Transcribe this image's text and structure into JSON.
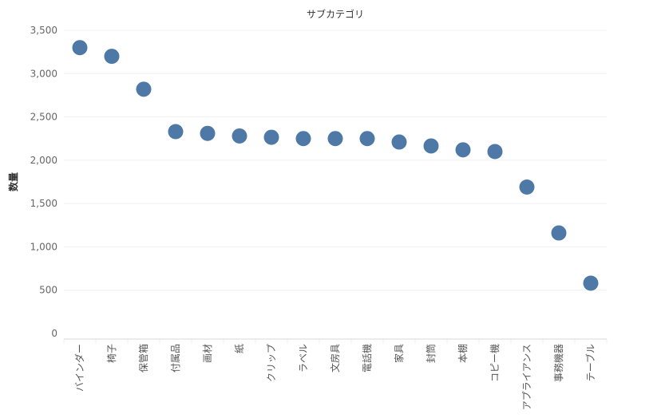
{
  "chart_data": {
    "type": "scatter",
    "title": "サブカテゴリ",
    "ylabel": "数量",
    "xlabel": "",
    "ylim": [
      0,
      3500
    ],
    "yticks": [
      0,
      500,
      1000,
      1500,
      2000,
      2500,
      3000,
      3500
    ],
    "ytick_labels": [
      "0",
      "500",
      "1,000",
      "1,500",
      "2,000",
      "2,500",
      "3,000",
      "3,500"
    ],
    "categories": [
      "バインダー",
      "椅子",
      "保管箱",
      "付属品",
      "画材",
      "紙",
      "クリップ",
      "ラベル",
      "文房具",
      "電話機",
      "家具",
      "封筒",
      "本棚",
      "コピー機",
      "アプライアンス",
      "事務機器",
      "テーブル"
    ],
    "values": [
      3300,
      3200,
      2820,
      2330,
      2310,
      2280,
      2265,
      2250,
      2250,
      2250,
      2210,
      2165,
      2120,
      2100,
      1690,
      1160,
      580
    ],
    "marker_color": "#4e79a7",
    "grid": true
  }
}
